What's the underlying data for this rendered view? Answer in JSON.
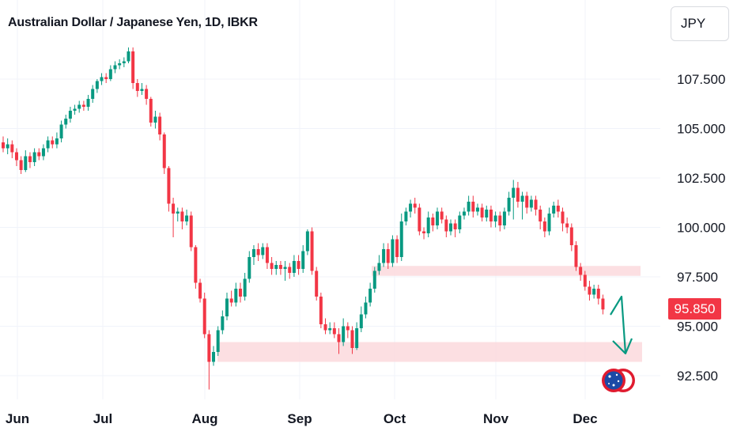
{
  "header": {
    "title": "Australian Dollar / Japanese Yen, 1D, IBKR",
    "currency_button": "JPY"
  },
  "last_price_label": "95.850",
  "colors": {
    "up": "#089981",
    "down": "#f23645",
    "zone": "#fbd9dd",
    "arrow": "#089981",
    "grid": "#f0f3fa",
    "flag_circle": "#e01b2f",
    "flag_blue": "#1b4aa6"
  },
  "icons": {
    "flag": "australia-flag-icon"
  },
  "chart_data": {
    "type": "candlestick",
    "title": "Australian Dollar / Japanese Yen, 1D, IBKR",
    "ylabel": "JPY",
    "ylim": [
      91.9,
      109.2
    ],
    "y_ticks": [
      "92.500",
      "95.000",
      "97.500",
      "100.000",
      "102.500",
      "105.000",
      "107.500"
    ],
    "x_ticks": [
      "Jun",
      "Jul",
      "Aug",
      "Sep",
      "Oct",
      "Nov",
      "Dec"
    ],
    "grid": true,
    "last_price": 95.85,
    "candles": [
      [
        104.3,
        104.0,
        104.6,
        103.8
      ],
      [
        104.0,
        104.2,
        104.5,
        103.7
      ],
      [
        104.2,
        103.8,
        104.4,
        103.5
      ],
      [
        103.8,
        103.4,
        104.0,
        103.1
      ],
      [
        103.4,
        102.9,
        103.6,
        102.7
      ],
      [
        102.9,
        103.6,
        103.9,
        102.8
      ],
      [
        103.6,
        103.3,
        103.8,
        103.0
      ],
      [
        103.3,
        103.8,
        104.0,
        103.1
      ],
      [
        103.8,
        103.6,
        104.0,
        103.4
      ],
      [
        103.6,
        104.0,
        104.2,
        103.4
      ],
      [
        104.0,
        104.4,
        104.6,
        103.8
      ],
      [
        104.4,
        104.2,
        104.6,
        104.0
      ],
      [
        104.2,
        104.5,
        104.8,
        104.0
      ],
      [
        104.5,
        105.2,
        105.4,
        104.3
      ],
      [
        105.2,
        105.5,
        105.7,
        105.0
      ],
      [
        105.5,
        105.9,
        106.1,
        105.3
      ],
      [
        105.9,
        106.0,
        106.2,
        105.7
      ],
      [
        106.0,
        106.2,
        106.4,
        105.8
      ],
      [
        106.2,
        106.1,
        106.4,
        105.9
      ],
      [
        106.1,
        106.5,
        106.7,
        105.9
      ],
      [
        106.5,
        107.0,
        107.2,
        106.3
      ],
      [
        107.0,
        107.4,
        107.5,
        106.8
      ],
      [
        107.4,
        107.6,
        107.8,
        107.2
      ],
      [
        107.6,
        107.5,
        107.8,
        107.3
      ],
      [
        107.5,
        108.0,
        108.2,
        107.4
      ],
      [
        108.0,
        108.2,
        108.4,
        107.8
      ],
      [
        108.2,
        108.3,
        108.5,
        108.0
      ],
      [
        108.3,
        108.4,
        108.6,
        108.1
      ],
      [
        108.4,
        108.9,
        109.1,
        108.3
      ],
      [
        108.9,
        107.3,
        109.1,
        107.0
      ],
      [
        107.3,
        106.9,
        107.5,
        106.6
      ],
      [
        106.9,
        107.0,
        107.3,
        106.7
      ],
      [
        107.0,
        106.5,
        107.2,
        106.2
      ],
      [
        106.5,
        105.3,
        106.6,
        105.1
      ],
      [
        105.3,
        105.6,
        105.9,
        105.0
      ],
      [
        105.6,
        104.7,
        105.8,
        104.4
      ],
      [
        104.7,
        103.0,
        104.8,
        102.7
      ],
      [
        103.0,
        101.2,
        103.1,
        100.8
      ],
      [
        101.2,
        100.7,
        101.5,
        99.5
      ],
      [
        100.7,
        100.8,
        101.0,
        100.3
      ],
      [
        100.8,
        100.3,
        101.0,
        99.9
      ],
      [
        100.3,
        100.6,
        100.9,
        100.1
      ],
      [
        100.6,
        99.0,
        100.8,
        98.8
      ],
      [
        99.0,
        97.2,
        99.1,
        96.9
      ],
      [
        97.2,
        96.4,
        97.4,
        96.2
      ],
      [
        96.4,
        94.6,
        96.7,
        94.4
      ],
      [
        94.6,
        93.2,
        94.8,
        91.8
      ],
      [
        93.2,
        93.7,
        94.0,
        93.0
      ],
      [
        93.7,
        94.8,
        95.0,
        93.5
      ],
      [
        94.8,
        95.5,
        95.8,
        94.6
      ],
      [
        95.5,
        96.4,
        96.7,
        95.3
      ],
      [
        96.4,
        96.2,
        96.8,
        96.0
      ],
      [
        96.2,
        96.9,
        97.2,
        96.0
      ],
      [
        96.9,
        96.5,
        97.2,
        96.2
      ],
      [
        96.5,
        97.4,
        97.7,
        96.3
      ],
      [
        97.4,
        98.5,
        98.8,
        97.2
      ],
      [
        98.5,
        98.9,
        99.1,
        98.1
      ],
      [
        98.9,
        98.6,
        99.2,
        98.3
      ],
      [
        98.6,
        99.0,
        99.2,
        98.4
      ],
      [
        99.0,
        98.2,
        99.2,
        97.9
      ],
      [
        98.2,
        97.9,
        98.5,
        97.6
      ],
      [
        97.9,
        98.1,
        98.3,
        97.6
      ],
      [
        98.1,
        97.9,
        98.3,
        97.6
      ],
      [
        97.9,
        98.0,
        98.3,
        97.3
      ],
      [
        98.0,
        97.7,
        98.2,
        97.4
      ],
      [
        97.7,
        98.3,
        98.6,
        97.5
      ],
      [
        98.3,
        97.9,
        98.6,
        97.6
      ],
      [
        97.9,
        98.8,
        99.1,
        97.7
      ],
      [
        98.8,
        99.8,
        99.9,
        98.6
      ],
      [
        99.8,
        97.8,
        100.0,
        97.6
      ],
      [
        97.8,
        96.5,
        98.0,
        96.3
      ],
      [
        96.5,
        95.1,
        96.7,
        94.9
      ],
      [
        95.1,
        94.8,
        95.4,
        94.6
      ],
      [
        94.8,
        94.9,
        95.2,
        94.6
      ],
      [
        94.9,
        94.6,
        95.2,
        94.4
      ],
      [
        94.6,
        94.2,
        94.9,
        93.6
      ],
      [
        94.2,
        95.0,
        95.4,
        94.0
      ],
      [
        95.0,
        94.8,
        95.2,
        94.4
      ],
      [
        94.8,
        93.9,
        95.0,
        93.6
      ],
      [
        93.9,
        94.9,
        95.2,
        93.8
      ],
      [
        94.9,
        95.6,
        96.0,
        94.7
      ],
      [
        95.6,
        96.2,
        96.5,
        95.4
      ],
      [
        96.2,
        96.9,
        97.2,
        96.0
      ],
      [
        96.9,
        97.8,
        98.0,
        96.7
      ],
      [
        97.8,
        98.2,
        98.6,
        97.6
      ],
      [
        98.2,
        98.9,
        99.2,
        98.0
      ],
      [
        98.9,
        98.2,
        99.2,
        97.9
      ],
      [
        98.2,
        99.4,
        99.6,
        98.0
      ],
      [
        99.4,
        98.5,
        99.6,
        98.2
      ],
      [
        98.5,
        100.3,
        100.7,
        98.3
      ],
      [
        100.3,
        100.8,
        101.0,
        100.1
      ],
      [
        100.8,
        101.2,
        101.4,
        100.5
      ],
      [
        101.2,
        101.0,
        101.5,
        100.7
      ],
      [
        101.0,
        99.8,
        101.2,
        99.6
      ],
      [
        99.8,
        99.7,
        100.0,
        99.4
      ],
      [
        99.7,
        100.5,
        100.8,
        99.5
      ],
      [
        100.5,
        100.1,
        100.7,
        99.8
      ],
      [
        100.1,
        100.8,
        101.0,
        99.9
      ],
      [
        100.8,
        100.4,
        101.0,
        100.2
      ],
      [
        100.4,
        99.8,
        100.6,
        99.5
      ],
      [
        99.8,
        100.2,
        100.4,
        99.6
      ],
      [
        100.2,
        99.9,
        100.4,
        99.5
      ],
      [
        99.9,
        100.6,
        100.8,
        99.7
      ],
      [
        100.6,
        100.8,
        101.0,
        100.4
      ],
      [
        100.8,
        101.3,
        101.6,
        100.6
      ],
      [
        101.3,
        100.8,
        101.6,
        100.5
      ],
      [
        100.8,
        101.0,
        101.2,
        100.6
      ],
      [
        101.0,
        100.5,
        101.2,
        100.3
      ],
      [
        100.5,
        100.9,
        101.1,
        100.3
      ],
      [
        100.9,
        100.3,
        101.1,
        100.0
      ],
      [
        100.3,
        100.6,
        100.8,
        100.0
      ],
      [
        100.6,
        100.1,
        100.8,
        99.8
      ],
      [
        100.1,
        100.8,
        101.0,
        99.9
      ],
      [
        100.8,
        101.5,
        101.8,
        100.6
      ],
      [
        101.5,
        102.0,
        102.4,
        100.4
      ],
      [
        102.0,
        101.3,
        102.3,
        101.0
      ],
      [
        101.3,
        101.6,
        101.8,
        100.4
      ],
      [
        101.6,
        101.0,
        101.8,
        100.7
      ],
      [
        101.0,
        101.4,
        101.6,
        100.8
      ],
      [
        101.4,
        100.9,
        101.6,
        100.6
      ],
      [
        100.9,
        100.3,
        101.1,
        99.9
      ],
      [
        100.3,
        99.8,
        100.5,
        99.5
      ],
      [
        99.8,
        100.7,
        101.0,
        99.6
      ],
      [
        100.7,
        101.1,
        101.3,
        100.5
      ],
      [
        101.1,
        100.8,
        101.4,
        100.5
      ],
      [
        100.8,
        100.2,
        101.0,
        99.8
      ],
      [
        100.2,
        100.0,
        100.5,
        99.7
      ],
      [
        100.0,
        99.1,
        100.2,
        98.8
      ],
      [
        99.1,
        98.0,
        99.3,
        97.8
      ],
      [
        98.0,
        97.6,
        98.2,
        97.3
      ],
      [
        97.6,
        97.0,
        97.8,
        96.8
      ],
      [
        97.0,
        96.6,
        97.3,
        96.3
      ],
      [
        96.6,
        96.9,
        97.1,
        96.4
      ],
      [
        96.9,
        96.4,
        97.1,
        96.1
      ],
      [
        96.4,
        95.85,
        96.6,
        95.6
      ]
    ],
    "zones": [
      {
        "y_from": 97.55,
        "y_to": 98.05
      },
      {
        "y_from": 93.2,
        "y_to": 94.2
      }
    ]
  }
}
